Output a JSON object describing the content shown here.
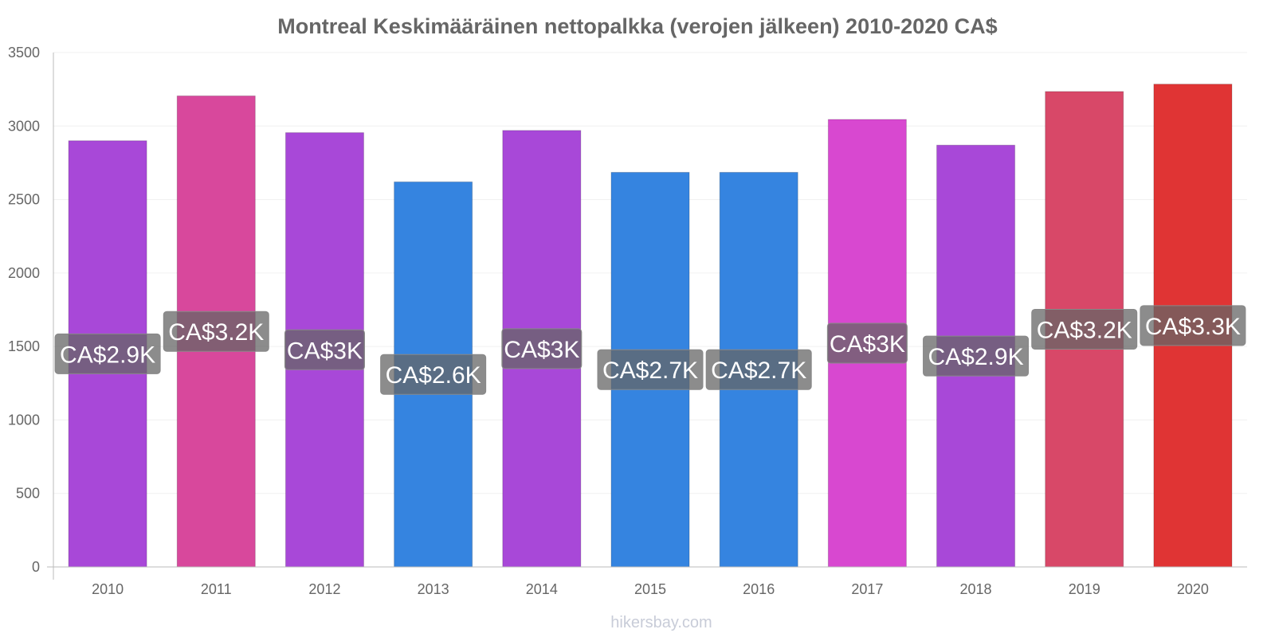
{
  "chart_data": {
    "type": "bar",
    "title": "Montreal Keskimääräinen nettopalkka (verojen jälkeen) 2010-2020 CA$",
    "categories": [
      "2010",
      "2011",
      "2012",
      "2013",
      "2014",
      "2015",
      "2016",
      "2017",
      "2018",
      "2019",
      "2020"
    ],
    "values": [
      2900,
      3205,
      2955,
      2620,
      2970,
      2685,
      2685,
      3045,
      2870,
      3235,
      3285
    ],
    "data_labels": [
      "CA$2.9K",
      "CA$3.2K",
      "CA$3K",
      "CA$2.6K",
      "CA$3K",
      "CA$2.7K",
      "CA$2.7K",
      "CA$3K",
      "CA$2.9K",
      "CA$3.2K",
      "CA$3.3K"
    ],
    "colors": [
      "#a848d8",
      "#d8489c",
      "#a848d8",
      "#3584e0",
      "#a848d8",
      "#3584e0",
      "#3584e0",
      "#d848d0",
      "#a848d8",
      "#d84868",
      "#e03434"
    ],
    "label_box_color": "#666666",
    "xlabel": "",
    "ylabel": "",
    "ylim": [
      0,
      3500
    ],
    "yticks": [
      0,
      500,
      1000,
      1500,
      2000,
      2500,
      3000,
      3500
    ],
    "grid": true,
    "legend": "none"
  },
  "footer": "hikersbay.com"
}
